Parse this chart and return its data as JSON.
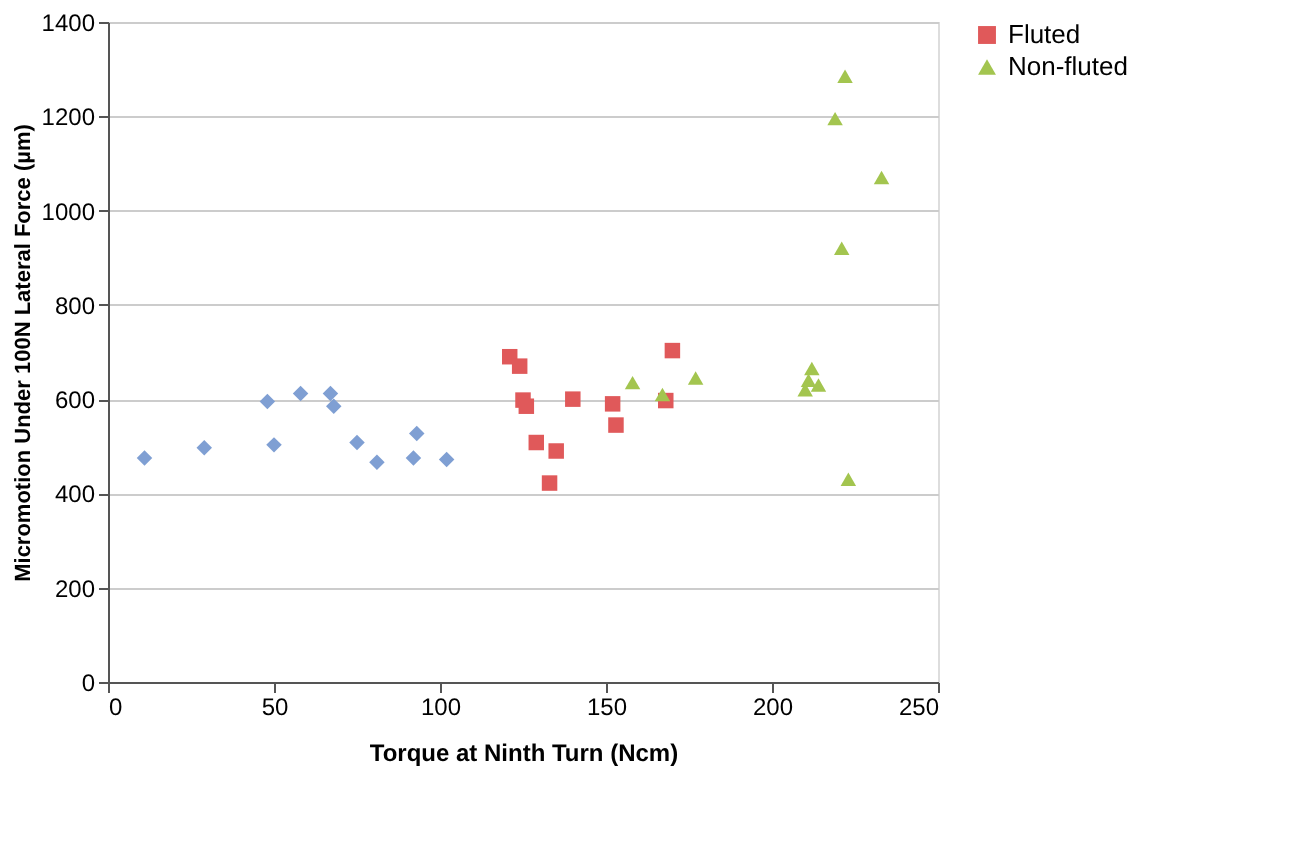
{
  "chart_data": {
    "type": "scatter",
    "xlabel": "Torque at Ninth Turn (Ncm)",
    "ylabel": "Micromotion Under 100N Lateral Force (µm)",
    "xlim": [
      0,
      250
    ],
    "xticks": [
      0,
      50,
      100,
      150,
      200,
      250
    ],
    "ylim": [
      0,
      1400
    ],
    "yticks": [
      0,
      200,
      400,
      600,
      800,
      1000,
      1200,
      1400
    ],
    "grid": "y",
    "legend": "right",
    "series": [
      {
        "color": "#7f9fd3",
        "marker": "diamond",
        "x": [
          11,
          29,
          48,
          50,
          58,
          67,
          68,
          75,
          81,
          92,
          93,
          102
        ],
        "values": [
          475,
          497,
          595,
          503,
          612,
          612,
          585,
          508,
          466,
          475,
          527,
          472
        ]
      },
      {
        "name": "Fluted",
        "color": "#e0595a",
        "marker": "square",
        "x": [
          121,
          124,
          125,
          126,
          129,
          133,
          135,
          140,
          152,
          153,
          168,
          170
        ],
        "values": [
          690,
          670,
          598,
          585,
          508,
          422,
          490,
          600,
          590,
          545,
          597,
          703
        ]
      },
      {
        "name": "Non-fluted",
        "color": "#a3c54f",
        "marker": "triangle",
        "x": [
          158,
          167,
          177,
          210,
          211,
          212,
          214,
          219,
          221,
          222,
          223,
          233
        ],
        "values": [
          635,
          610,
          645,
          620,
          640,
          665,
          630,
          1195,
          920,
          1285,
          430,
          1070
        ]
      }
    ]
  }
}
